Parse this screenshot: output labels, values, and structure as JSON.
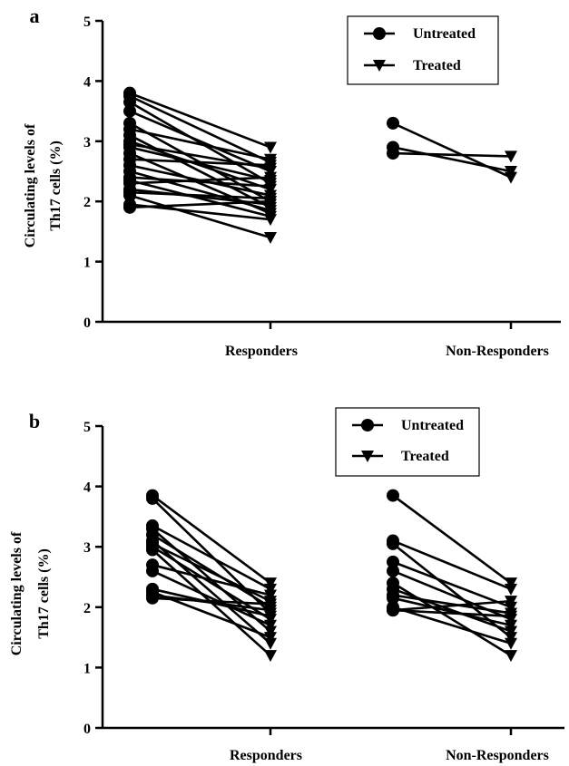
{
  "chart_data": [
    {
      "type": "line",
      "panel_label": "a",
      "ylabel_line1": "Circulating levels of",
      "ylabel_line2": "Th17 cells (%)",
      "ylim": [
        0,
        5
      ],
      "yticks": [
        "0",
        "1",
        "2",
        "3",
        "4",
        "5"
      ],
      "categories": [
        "Responders",
        "Non-Responders"
      ],
      "legend": {
        "placement": "top-right",
        "entries": [
          "Untreated",
          "Treated"
        ]
      },
      "groups": [
        {
          "category": "Responders",
          "pairs": [
            [
              3.8,
              2.9
            ],
            [
              3.75,
              2.65
            ],
            [
              3.65,
              2.3
            ],
            [
              3.5,
              2.5
            ],
            [
              3.3,
              2.0
            ],
            [
              3.2,
              2.7
            ],
            [
              3.1,
              1.9
            ],
            [
              3.0,
              2.2
            ],
            [
              2.95,
              2.55
            ],
            [
              2.9,
              2.35
            ],
            [
              2.8,
              1.8
            ],
            [
              2.7,
              2.6
            ],
            [
              2.6,
              2.1
            ],
            [
              2.5,
              1.85
            ],
            [
              2.4,
              2.25
            ],
            [
              2.35,
              1.75
            ],
            [
              2.3,
              2.4
            ],
            [
              2.2,
              1.95
            ],
            [
              2.15,
              2.05
            ],
            [
              2.1,
              1.4
            ],
            [
              1.95,
              1.7
            ],
            [
              1.9,
              2.0
            ]
          ]
        },
        {
          "category": "Non-Responders",
          "pairs": [
            [
              3.3,
              2.4
            ],
            [
              2.9,
              2.5
            ],
            [
              2.8,
              2.75
            ]
          ]
        }
      ]
    },
    {
      "type": "line",
      "panel_label": "b",
      "ylabel_line1": "Circulating levels of",
      "ylabel_line2": "Th17 cells (%)",
      "ylim": [
        0,
        5
      ],
      "yticks": [
        "0",
        "1",
        "2",
        "3",
        "4",
        "5"
      ],
      "categories": [
        "Responders",
        "Non-Responders"
      ],
      "legend": {
        "placement": "top-right",
        "entries": [
          "Untreated",
          "Treated"
        ]
      },
      "groups": [
        {
          "category": "Responders",
          "pairs": [
            [
              3.85,
              2.4
            ],
            [
              3.8,
              1.9
            ],
            [
              3.35,
              2.3
            ],
            [
              3.3,
              1.6
            ],
            [
              3.2,
              2.0
            ],
            [
              3.1,
              1.4
            ],
            [
              3.05,
              2.1
            ],
            [
              3.0,
              1.8
            ],
            [
              2.95,
              1.2
            ],
            [
              2.7,
              2.2
            ],
            [
              2.6,
              1.7
            ],
            [
              2.3,
              1.85
            ],
            [
              2.25,
              1.5
            ],
            [
              2.2,
              1.95
            ],
            [
              2.15,
              2.05
            ]
          ]
        },
        {
          "category": "Non-Responders",
          "pairs": [
            [
              3.85,
              2.4
            ],
            [
              3.1,
              2.3
            ],
            [
              3.05,
              1.5
            ],
            [
              2.75,
              2.0
            ],
            [
              2.6,
              1.8
            ],
            [
              2.4,
              1.2
            ],
            [
              2.3,
              1.6
            ],
            [
              2.2,
              1.9
            ],
            [
              2.15,
              1.7
            ],
            [
              1.95,
              1.85
            ],
            [
              1.95,
              2.1
            ],
            [
              2.0,
              1.4
            ]
          ]
        }
      ]
    }
  ]
}
